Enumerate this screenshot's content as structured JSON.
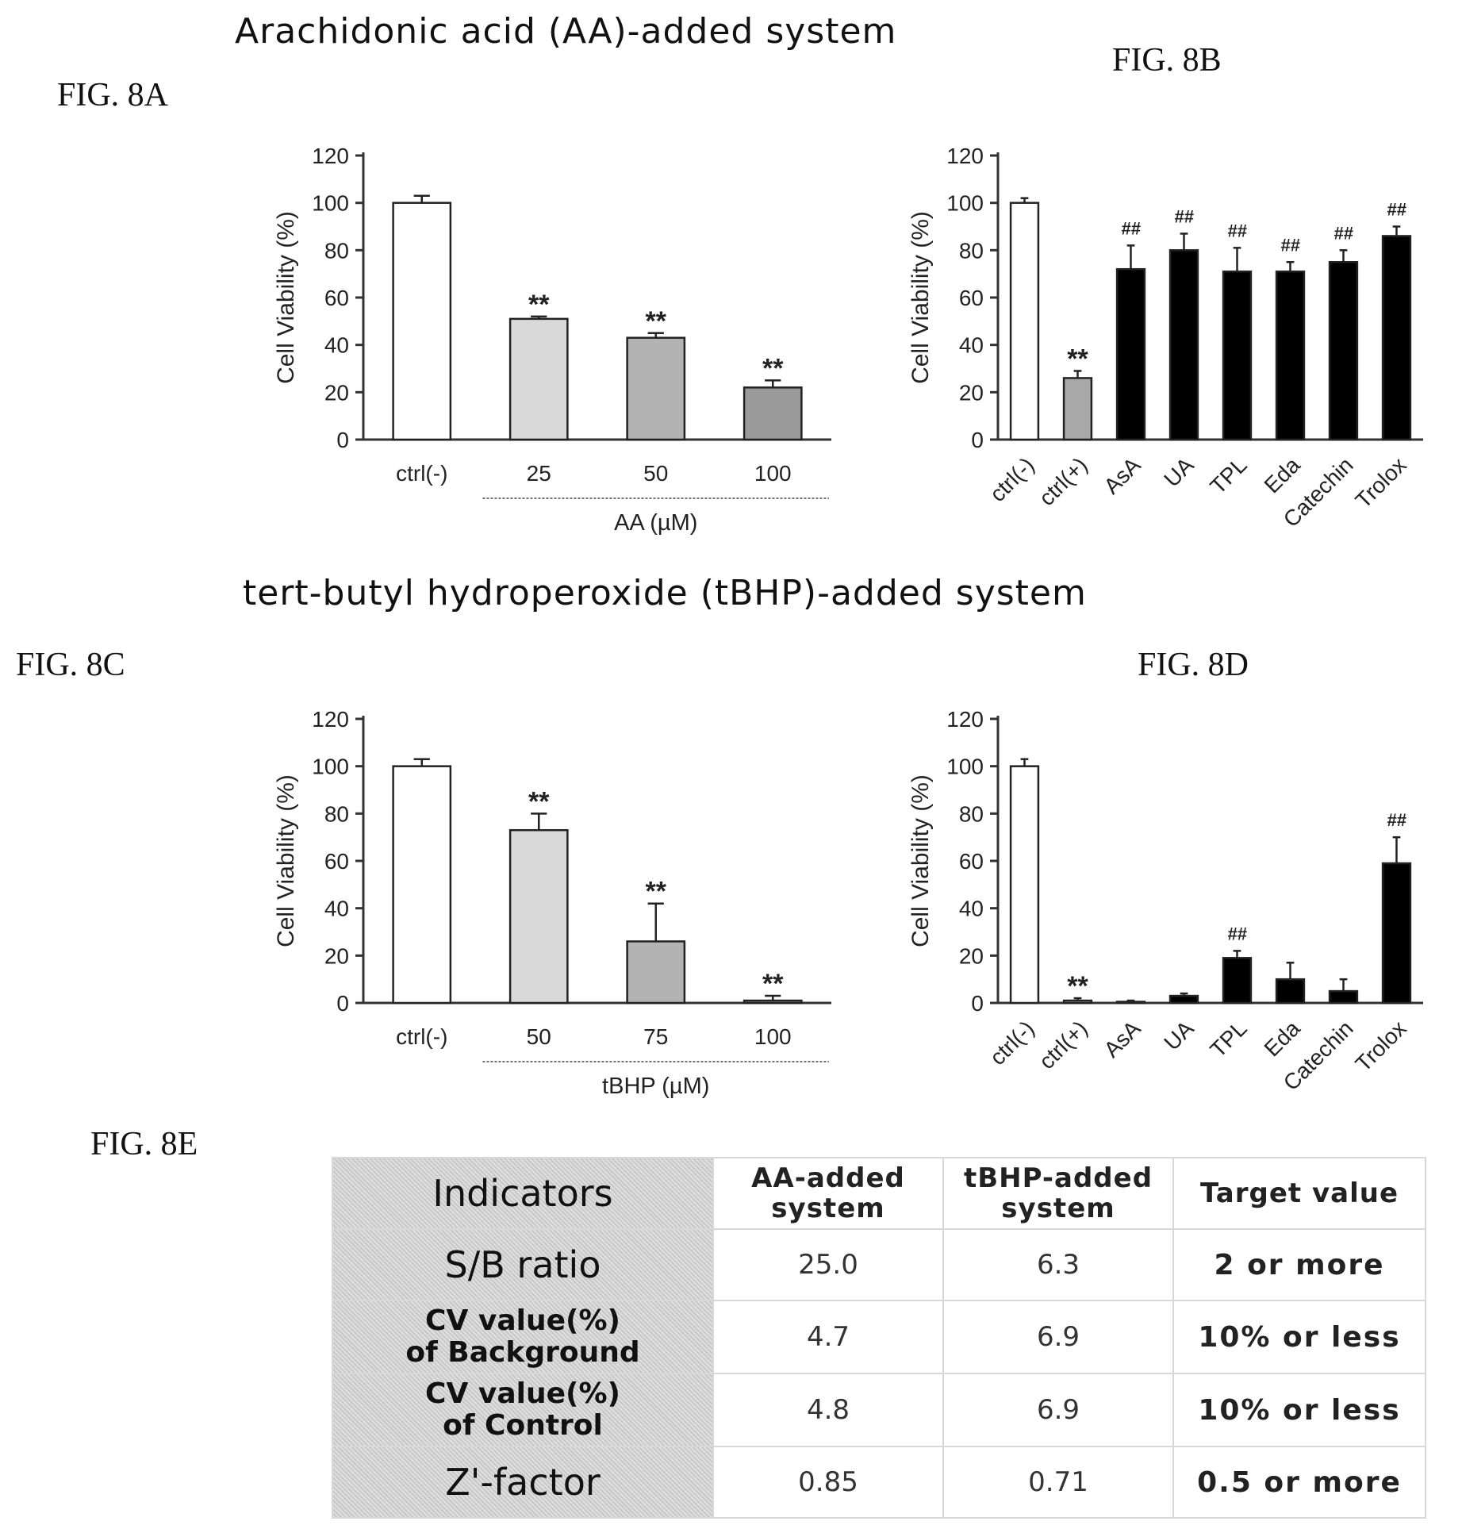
{
  "sections": {
    "aa_title": "Arachidonic acid (AA)-added system",
    "tbhp_title": "tert-butyl hydroperoxide (tBHP)-added system"
  },
  "figures": {
    "a": "FIG. 8A",
    "b": "FIG. 8B",
    "c": "FIG. 8C",
    "d": "FIG. 8D",
    "e": "FIG. 8E"
  },
  "chart_data": [
    {
      "id": "8A",
      "type": "bar",
      "ylabel": "Cell Viability (%)",
      "ylim": [
        0,
        120
      ],
      "yticks": [
        0,
        20,
        40,
        60,
        80,
        100,
        120
      ],
      "categories": [
        "ctrl(-)",
        "25",
        "50",
        "100"
      ],
      "group_label": "AA (µM)",
      "group_span": [
        1,
        3
      ],
      "rotate_labels": false,
      "values": [
        100,
        51,
        43,
        22
      ],
      "errors": [
        3,
        1,
        2,
        3
      ],
      "fills": [
        "#ffffff",
        "#d9d9d9",
        "#b3b3b3",
        "#9a9a9a"
      ],
      "annotations": [
        "",
        "**",
        "**",
        "**"
      ],
      "grid": false
    },
    {
      "id": "8B",
      "type": "bar",
      "ylabel": "Cell Viability (%)",
      "ylim": [
        0,
        120
      ],
      "yticks": [
        0,
        20,
        40,
        60,
        80,
        100,
        120
      ],
      "categories": [
        "ctrl(-)",
        "ctrl(+)",
        "AsA",
        "UA",
        "TPL",
        "Eda",
        "Catechin",
        "Trolox"
      ],
      "rotate_labels": true,
      "values": [
        100,
        26,
        72,
        80,
        71,
        71,
        75,
        86
      ],
      "errors": [
        2,
        3,
        10,
        7,
        10,
        4,
        5,
        4
      ],
      "fills": [
        "#ffffff",
        "#a8a8a8",
        "#000000",
        "#000000",
        "#000000",
        "#000000",
        "#000000",
        "#000000"
      ],
      "annotations": [
        "",
        "**",
        "##",
        "##",
        "##",
        "##",
        "##",
        "##"
      ],
      "grid": false
    },
    {
      "id": "8C",
      "type": "bar",
      "ylabel": "Cell Viability (%)",
      "ylim": [
        0,
        120
      ],
      "yticks": [
        0,
        20,
        40,
        60,
        80,
        100,
        120
      ],
      "categories": [
        "ctrl(-)",
        "50",
        "75",
        "100"
      ],
      "group_label": "tBHP (µM)",
      "group_span": [
        1,
        3
      ],
      "rotate_labels": false,
      "values": [
        100,
        73,
        26,
        1
      ],
      "errors": [
        3,
        7,
        16,
        2
      ],
      "fills": [
        "#ffffff",
        "#d9d9d9",
        "#b3b3b3",
        "#9a9a9a"
      ],
      "annotations": [
        "",
        "**",
        "**",
        "**"
      ],
      "grid": false
    },
    {
      "id": "8D",
      "type": "bar",
      "ylabel": "Cell Viability (%)",
      "ylim": [
        0,
        120
      ],
      "yticks": [
        0,
        20,
        40,
        60,
        80,
        100,
        120
      ],
      "categories": [
        "ctrl(-)",
        "ctrl(+)",
        "AsA",
        "UA",
        "TPL",
        "Eda",
        "Catechin",
        "Trolox"
      ],
      "rotate_labels": true,
      "values": [
        100,
        1,
        0.5,
        3,
        19,
        10,
        5,
        59
      ],
      "errors": [
        3,
        1,
        0.5,
        1,
        3,
        7,
        5,
        11
      ],
      "fills": [
        "#ffffff",
        "#a8a8a8",
        "#000000",
        "#000000",
        "#000000",
        "#000000",
        "#000000",
        "#000000"
      ],
      "annotations": [
        "",
        "**",
        "",
        "",
        "##",
        "",
        "",
        "##"
      ],
      "grid": false
    },
    {
      "id": "8E",
      "type": "table",
      "columns": [
        "Indicators",
        "AA-added system",
        "tBHP-added system",
        "Target value"
      ],
      "rows": [
        [
          "S/B ratio",
          "25.0",
          "6.3",
          "2 or more"
        ],
        [
          "CV value(%) of Background",
          "4.7",
          "6.9",
          "10% or less"
        ],
        [
          "CV value(%) of Control",
          "4.8",
          "6.9",
          "10% or less"
        ],
        [
          "Z'-factor",
          "0.85",
          "0.71",
          "0.5 or more"
        ]
      ]
    }
  ],
  "table": {
    "headers": {
      "indicators": "Indicators",
      "aa_line1": "AA-added",
      "aa_line2": "system",
      "tbhp_line1": "tBHP-added",
      "tbhp_line2": "system",
      "target": "Target value"
    },
    "rows": [
      {
        "ind_line1": "S/B ratio",
        "ind_line2": "",
        "aa": "25.0",
        "tbhp": "6.3",
        "target": "2 or more"
      },
      {
        "ind_line1": "CV value(%)",
        "ind_line2": "of Background",
        "aa": "4.7",
        "tbhp": "6.9",
        "target": "10% or less"
      },
      {
        "ind_line1": "CV value(%)",
        "ind_line2": "of Control",
        "aa": "4.8",
        "tbhp": "6.9",
        "target": "10% or less"
      },
      {
        "ind_line1": "Z'-factor",
        "ind_line2": "",
        "aa": "0.85",
        "tbhp": "0.71",
        "target": "0.5 or more"
      }
    ]
  }
}
